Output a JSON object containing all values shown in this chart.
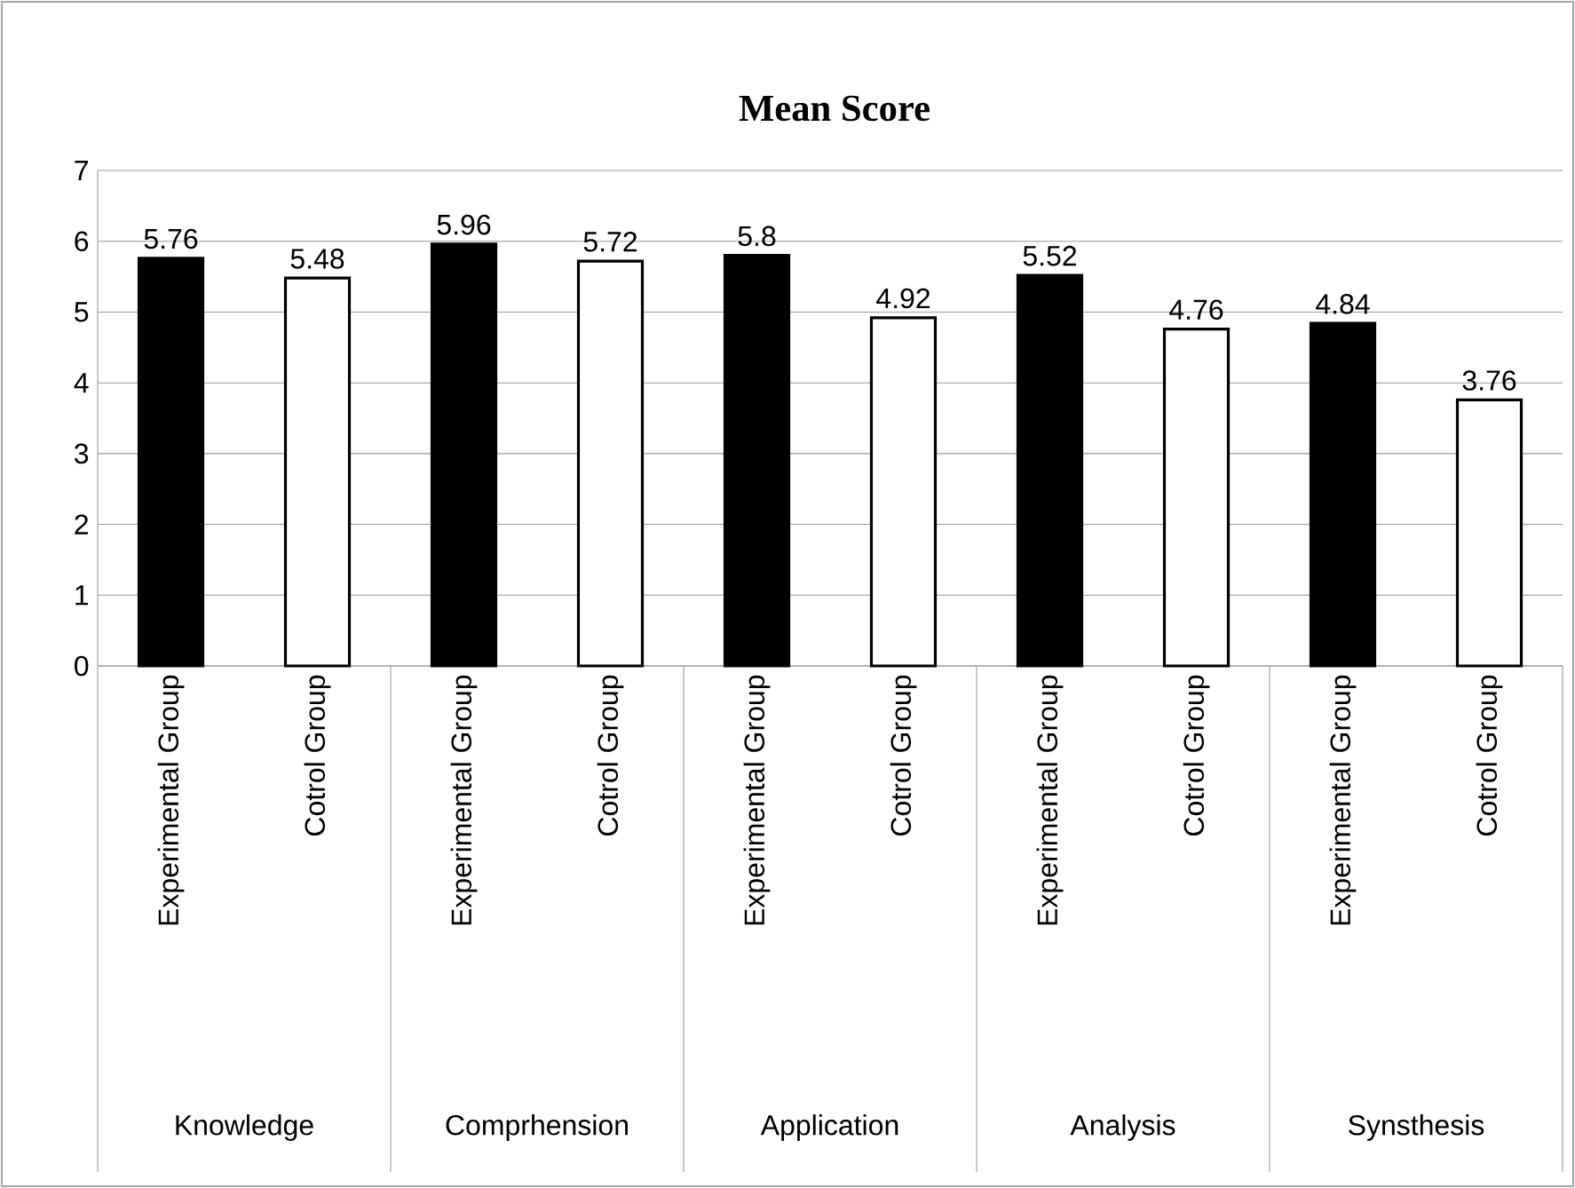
{
  "chart_data": {
    "type": "bar",
    "title": "Mean Score",
    "categories": [
      "Experimental Group",
      "Cotrol  Group",
      "Experimental Group",
      "Cotrol  Group",
      "Experimental Group",
      "Cotrol  Group",
      "Experimental Group",
      "Cotrol  Group",
      "Experimental Group",
      "Cotrol  Group"
    ],
    "values": [
      5.76,
      5.48,
      5.96,
      5.72,
      5.8,
      4.92,
      5.52,
      4.76,
      4.84,
      3.76
    ],
    "colors": [
      "#000000",
      "#ffffff",
      "#000000",
      "#ffffff",
      "#000000",
      "#ffffff",
      "#000000",
      "#ffffff",
      "#000000",
      "#ffffff"
    ],
    "annotations": [
      "Knowledge",
      "Comprhension",
      "Application",
      "Analysis",
      "Synsthesis"
    ],
    "ylim": [
      0,
      7
    ],
    "yticks": [
      0,
      1,
      2,
      3,
      4,
      5,
      6,
      7
    ],
    "grid": "y",
    "data_labels": true
  }
}
